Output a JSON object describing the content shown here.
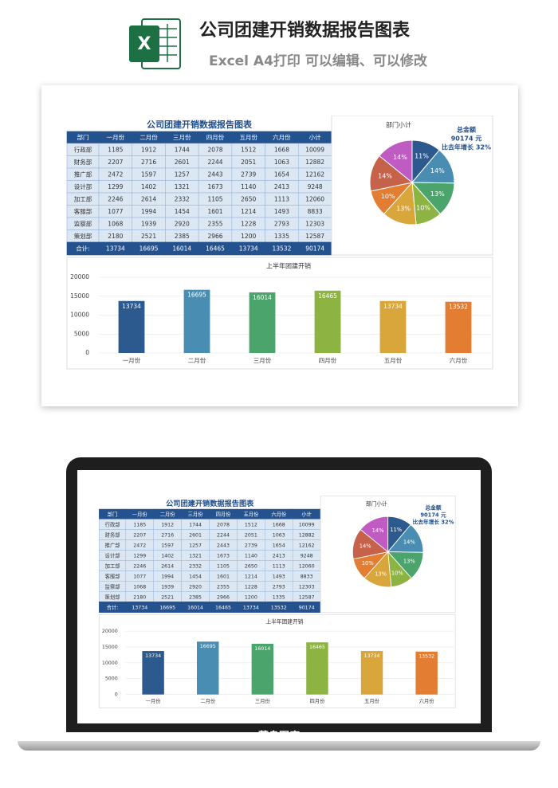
{
  "header": {
    "title": "公司团建开销数据报告图表",
    "subtitle": "Excel A4打印 可以编辑、可以修改"
  },
  "table": {
    "title": "公司团建开销数据报告图表",
    "columns": [
      "部门",
      "一月份",
      "二月份",
      "三月份",
      "四月份",
      "五月份",
      "六月份",
      "小计"
    ],
    "rows": [
      [
        "行政部",
        1185,
        1912,
        1744,
        2078,
        1512,
        1668,
        10099
      ],
      [
        "财务部",
        2207,
        2716,
        2601,
        2244,
        2051,
        1063,
        12882
      ],
      [
        "推广部",
        2472,
        1597,
        1257,
        2443,
        2739,
        1654,
        12162
      ],
      [
        "设计部",
        1299,
        1402,
        1321,
        1673,
        1140,
        2413,
        9248
      ],
      [
        "加工部",
        2246,
        2614,
        2332,
        1105,
        2650,
        1113,
        12060
      ],
      [
        "客服部",
        1077,
        1994,
        1454,
        1601,
        1214,
        1493,
        8833
      ],
      [
        "监察部",
        1068,
        1939,
        2920,
        2355,
        1228,
        2793,
        12303
      ],
      [
        "策划部",
        2180,
        2521,
        2385,
        2966,
        1200,
        1335,
        12587
      ]
    ],
    "total": [
      "合计:",
      13734,
      16695,
      16014,
      16465,
      13734,
      13532,
      90174
    ]
  },
  "chart_data": [
    {
      "type": "pie",
      "title": "部门小计",
      "annotations": [
        "总金额",
        "90174 元",
        "比去年增长 32%"
      ],
      "values": [
        11,
        14,
        13,
        10,
        13,
        10,
        14,
        14
      ],
      "value_labels": [
        "11%",
        "14%",
        "13%",
        "10%",
        "13%",
        "10%",
        "14%",
        "14%"
      ],
      "colors": [
        "#2d5a8e",
        "#4a8db2",
        "#4ba46c",
        "#8db443",
        "#d9a63b",
        "#e27d31",
        "#c7624a",
        "#c15bc4"
      ]
    },
    {
      "type": "bar",
      "title": "上半年团建开销",
      "categories": [
        "一月份",
        "二月份",
        "三月份",
        "四月份",
        "五月份",
        "六月份"
      ],
      "values": [
        13734,
        16695,
        16014,
        16465,
        13734,
        13532
      ],
      "colors": [
        "#2d5a8e",
        "#4a8db2",
        "#4ba46c",
        "#8db443",
        "#d9a63b",
        "#e27d31"
      ],
      "ylim": [
        0,
        20000
      ],
      "yticks": [
        0,
        5000,
        10000,
        15000,
        20000
      ],
      "grid": true
    }
  ],
  "footer": {
    "brand": "菁鸟图库"
  }
}
